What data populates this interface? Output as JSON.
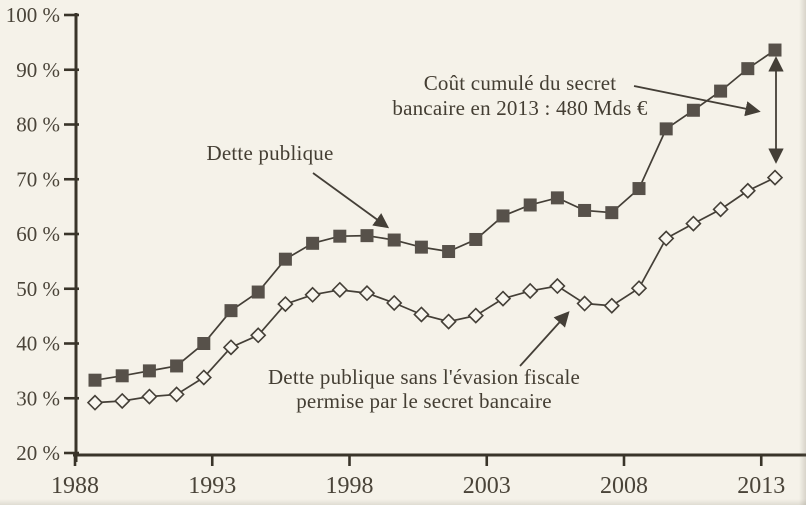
{
  "chart_data": {
    "type": "line",
    "title": "",
    "xlabel": "",
    "ylabel": "",
    "grid": false,
    "legend": "none",
    "xlim": [
      1988,
      2014
    ],
    "ylim": [
      20,
      100
    ],
    "x": [
      1988,
      1989,
      1990,
      1991,
      1992,
      1993,
      1994,
      1995,
      1996,
      1997,
      1998,
      1999,
      2000,
      2001,
      2002,
      2003,
      2004,
      2005,
      2006,
      2007,
      2008,
      2009,
      2010,
      2011,
      2012,
      2013
    ],
    "series": [
      {
        "name": "Dette publique",
        "marker": "filled-square",
        "values": [
          33.3,
          34.1,
          35.0,
          35.9,
          40.0,
          46.0,
          49.4,
          55.4,
          58.3,
          59.6,
          59.7,
          58.9,
          57.6,
          56.8,
          59.0,
          63.3,
          65.3,
          66.6,
          64.3,
          63.9,
          68.3,
          79.2,
          82.6,
          86.1,
          90.2,
          93.6
        ]
      },
      {
        "name": "Dette publique sans l'évasion fiscale permise par le secret bancaire",
        "marker": "open-diamond",
        "values": [
          29.2,
          29.5,
          30.3,
          30.7,
          33.8,
          39.3,
          41.5,
          47.2,
          48.9,
          49.8,
          49.2,
          47.4,
          45.3,
          44.0,
          45.1,
          48.2,
          49.6,
          50.5,
          47.3,
          46.9,
          50.1,
          59.2,
          61.9,
          64.5,
          67.9,
          70.3
        ]
      }
    ],
    "y_tick_labels": [
      "100 %",
      "90 %",
      "80 %",
      "70 %",
      "60 %",
      "50 %",
      "40 %",
      "30 %",
      "20 %"
    ],
    "y_tick_values": [
      100,
      90,
      80,
      70,
      60,
      50,
      40,
      30,
      20
    ],
    "x_tick_labels": [
      "1988",
      "1993",
      "1998",
      "2003",
      "2008",
      "2013"
    ],
    "x_tick_values": [
      1988,
      1993,
      1998,
      2003,
      2008,
      2013
    ],
    "annotations": {
      "cost_line1": "Coût cumulé du secret",
      "cost_line2": "bancaire en 2013 : 480 Mds €",
      "dette_publique": "Dette publique",
      "sans_line1": "Dette publique sans l'évasion fiscale",
      "sans_line2": "permise par le secret bancaire"
    },
    "colors": {
      "ink": "#443f37",
      "axis": "#393429",
      "text": "#4a4439",
      "marker_fill": "#57514a",
      "diamond_fill": "#f8f6ef",
      "background": "#f5f2e9"
    }
  }
}
